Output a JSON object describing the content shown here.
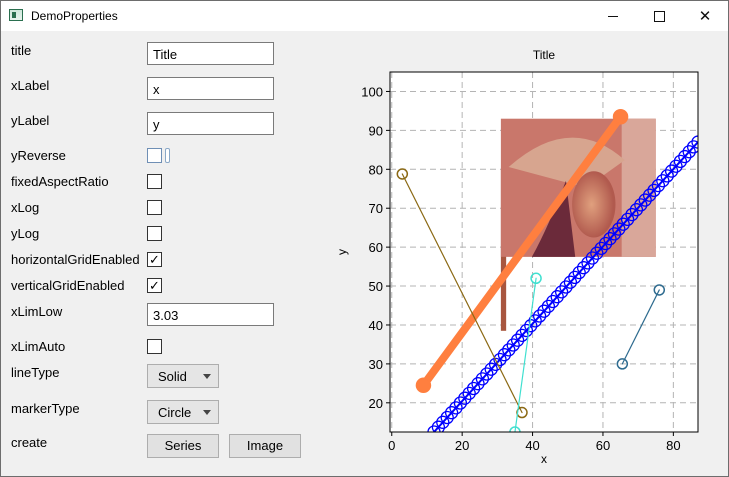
{
  "window": {
    "title": "DemoProperties"
  },
  "form": {
    "title_label": "title",
    "title_value": "Title",
    "xlabel_label": "xLabel",
    "xlabel_value": "x",
    "ylabel_label": "yLabel",
    "ylabel_value": "y",
    "yreverse_label": "yReverse",
    "fixedaspect_label": "fixedAspectRatio",
    "xlog_label": "xLog",
    "ylog_label": "yLog",
    "hgrid_label": "horizontalGridEnabled",
    "hgrid_checked": "✓",
    "vgrid_label": "verticalGridEnabled",
    "vgrid_checked": "✓",
    "xlimlow_label": "xLimLow",
    "xlimlow_value": "3.03",
    "xlimauto_label": "xLimAuto",
    "linetype_label": "lineType",
    "linetype_value": "Solid",
    "markertype_label": "markerType",
    "markertype_value": "Circle",
    "create_label": "create",
    "series_button": "Series",
    "image_button": "Image"
  },
  "chart_data": {
    "type": "line",
    "title": "Title",
    "xlabel": "x",
    "ylabel": "y",
    "xlim": [
      -0.5,
      87
    ],
    "ylim": [
      12.5,
      105
    ],
    "xticks": [
      0,
      20,
      40,
      60,
      80
    ],
    "yticks": [
      20,
      30,
      40,
      50,
      60,
      70,
      80,
      90,
      100
    ],
    "grid": true,
    "grid_style": "dashed",
    "series": [
      {
        "color": "#0000ff",
        "marker": "circle",
        "line_width": 2,
        "marker_size": 6,
        "dense": true,
        "x": [
          12,
          87
        ],
        "y": [
          12.5,
          87
        ]
      },
      {
        "color": "#ff7f3f",
        "marker": "circle",
        "line_width": 8,
        "marker_size": 7,
        "x": [
          9,
          65
        ],
        "y": [
          24.5,
          93.5
        ]
      },
      {
        "color": "#8b6914",
        "marker": "circle",
        "line_width": 1.2,
        "marker_size": 5,
        "x": [
          3,
          37
        ],
        "y": [
          78.8,
          17.5
        ]
      },
      {
        "color": "#2e6b8f",
        "marker": "circle",
        "line_width": 1.2,
        "marker_size": 5,
        "x": [
          65.5,
          76
        ],
        "y": [
          30,
          49
        ]
      },
      {
        "color": "#40e0d0",
        "marker": "circle",
        "line_width": 1.2,
        "marker_size": 5,
        "x": [
          35,
          41
        ],
        "y": [
          12.5,
          52
        ]
      }
    ],
    "image": {
      "name": "lenna-photo",
      "x": [
        31,
        75
      ],
      "y": [
        57.5,
        93
      ]
    },
    "image_strip": {
      "x": [
        31,
        32.5
      ],
      "y": [
        38.5,
        80
      ]
    }
  }
}
